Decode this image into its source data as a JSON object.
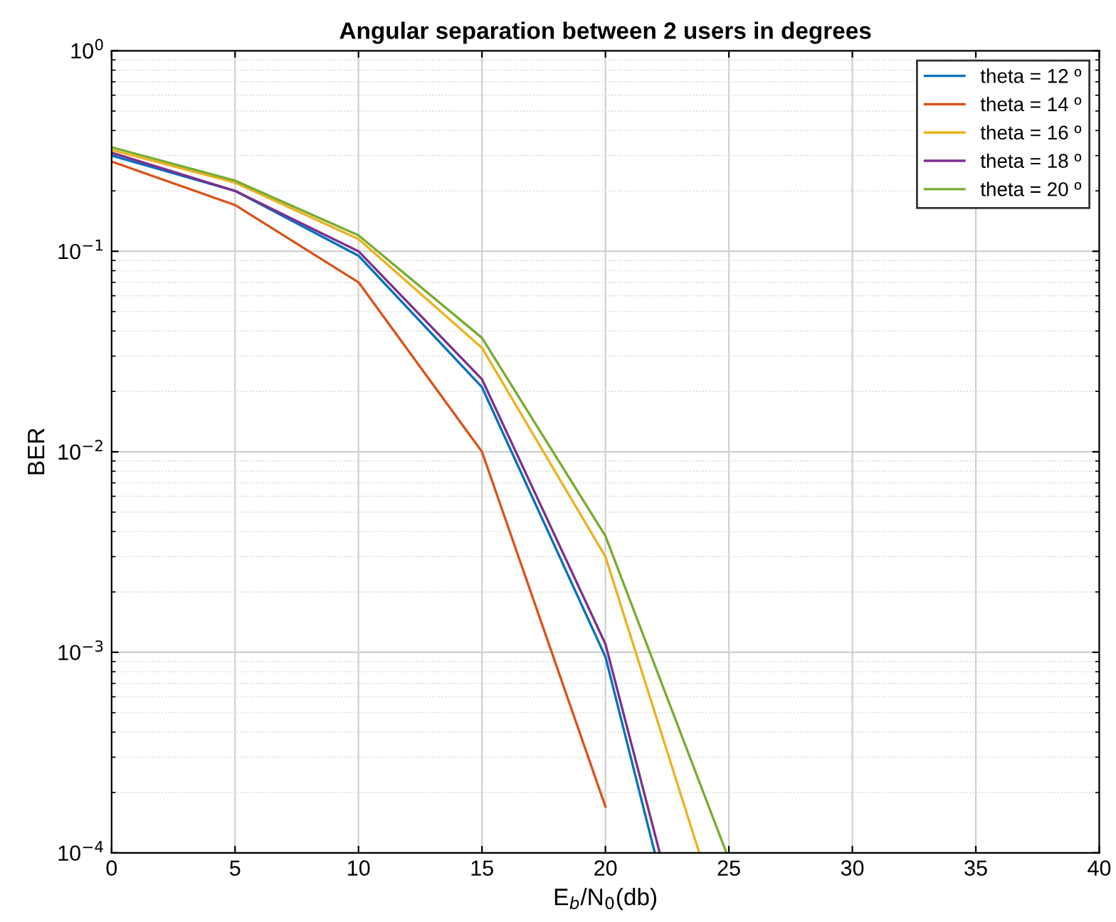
{
  "chart_data": {
    "type": "line",
    "title": "Angular separation between 2 users in degrees",
    "xlabel": "E$_{b}$/N$_{0}$(db)",
    "ylabel": "BER",
    "series": [
      {
        "name": "theta = 12 º",
        "color": "#0072bd",
        "x": [
          0,
          5,
          10,
          15,
          20,
          22.0
        ],
        "values": [
          0.3,
          0.2,
          0.095,
          0.021,
          0.00095,
          0.0001
        ]
      },
      {
        "name": "theta = 14 º",
        "color": "#d95319",
        "x": [
          0,
          5,
          10,
          15,
          20
        ],
        "values": [
          0.28,
          0.17,
          0.07,
          0.01,
          0.00017
        ]
      },
      {
        "name": "theta = 16 º",
        "color": "#edb120",
        "x": [
          0,
          5,
          10,
          15,
          20,
          23.8
        ],
        "values": [
          0.32,
          0.22,
          0.115,
          0.033,
          0.003,
          0.0001
        ]
      },
      {
        "name": "theta = 18 º",
        "color": "#7e2f8e",
        "x": [
          0,
          5,
          10,
          15,
          20,
          22.2
        ],
        "values": [
          0.31,
          0.2,
          0.1,
          0.023,
          0.0011,
          0.0001
        ]
      },
      {
        "name": "theta = 20 º",
        "color": "#77ac30",
        "x": [
          0,
          5,
          10,
          15,
          20,
          24.9
        ],
        "values": [
          0.33,
          0.225,
          0.12,
          0.037,
          0.0038,
          0.0001
        ]
      }
    ],
    "log": "y",
    "xlim": [
      0,
      40
    ],
    "xticks": [
      0,
      5,
      10,
      15,
      20,
      25,
      30,
      35,
      40
    ],
    "ylim": [
      0.0001,
      1
    ],
    "yticks": [
      {
        "value": 0.0001,
        "label": "10$^{−4}$"
      },
      {
        "value": 0.001,
        "label": "10$^{−3}$"
      },
      {
        "value": 0.01,
        "label": "10$^{−2}$"
      },
      {
        "value": 0.1,
        "label": "10$^{−1}$"
      },
      {
        "value": 1,
        "label": "10$^{0}$"
      }
    ],
    "grid": true,
    "legend": "top right",
    "marker": "none",
    "line_style": "solid"
  }
}
